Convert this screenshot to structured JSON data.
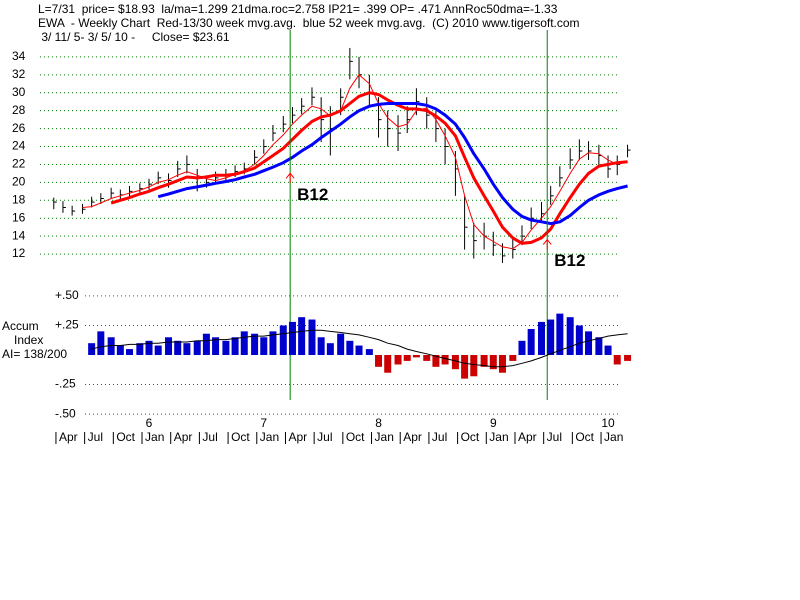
{
  "header": [
    "L=7/31  price= $18.93  la/ma=1.299 21dma.roc=2.758 IP21= .399 OP= .471 AnnRoc50dma=-1.33",
    "EWA  - Weekly Chart  Red-13/30 week mvg.avg.  blue 52 week mvg.avg.  (C) 2010 www.tigersoft.com",
    " 3/ 11/ 5- 3/ 5/ 10 -     Close= $23.61"
  ],
  "chart_data": [
    {
      "type": "ohlc",
      "x": [
        2005.17,
        2005.25,
        2005.33,
        2005.42,
        2005.5,
        2005.58,
        2005.67,
        2005.75,
        2005.83,
        2005.92,
        2006,
        2006.08,
        2006.17,
        2006.25,
        2006.33,
        2006.42,
        2006.5,
        2006.58,
        2006.67,
        2006.75,
        2006.83,
        2006.92,
        2007,
        2007.08,
        2007.17,
        2007.25,
        2007.33,
        2007.42,
        2007.5,
        2007.58,
        2007.67,
        2007.75,
        2007.83,
        2007.92,
        2008,
        2008.08,
        2008.17,
        2008.25,
        2008.33,
        2008.42,
        2008.5,
        2008.58,
        2008.67,
        2008.75,
        2008.83,
        2008.92,
        2009,
        2009.08,
        2009.17,
        2009.25,
        2009.33,
        2009.42,
        2009.5,
        2009.58,
        2009.67,
        2009.75,
        2009.83,
        2009.92,
        2010,
        2010.08,
        2010.17
      ],
      "high": [
        18.3,
        17.9,
        17.4,
        17.6,
        18.4,
        18.8,
        19.4,
        19.2,
        19.6,
        19.9,
        20.4,
        21.2,
        21.0,
        22.4,
        23.0,
        21.5,
        20.8,
        21.2,
        21.5,
        21.9,
        22.2,
        23.6,
        24.8,
        26.4,
        27.4,
        28.4,
        29.4,
        30.6,
        29.5,
        28.5,
        30.5,
        35.0,
        34.0,
        32.0,
        29.5,
        28.0,
        27.5,
        28.5,
        30.5,
        29.5,
        28.0,
        26.0,
        23.5,
        18.5,
        15.5,
        15.5,
        14.5,
        13.2,
        13.8,
        15.2,
        17.2,
        17.8,
        19.6,
        21.8,
        23.8,
        24.8,
        24.6,
        24.2,
        23.0,
        23.0,
        24.2
      ],
      "low": [
        17.0,
        16.6,
        16.3,
        16.5,
        17.2,
        17.6,
        18.2,
        18.0,
        18.4,
        18.7,
        19.2,
        19.8,
        19.4,
        20.6,
        21.0,
        19.0,
        19.4,
        19.8,
        20.2,
        20.6,
        20.9,
        22.0,
        23.2,
        24.6,
        25.6,
        26.6,
        27.6,
        28.6,
        24.5,
        23.0,
        27.5,
        31.5,
        30.5,
        28.5,
        25.0,
        24.0,
        23.5,
        25.5,
        27.5,
        26.0,
        24.5,
        22.0,
        18.5,
        12.5,
        11.5,
        12.5,
        11.8,
        11.0,
        11.5,
        13.0,
        14.8,
        15.5,
        17.5,
        19.5,
        21.5,
        22.5,
        22.5,
        21.8,
        20.5,
        20.8,
        22.8
      ],
      "close": [
        17.8,
        17.2,
        16.8,
        17.0,
        17.8,
        18.2,
        18.8,
        18.6,
        19.0,
        19.3,
        19.8,
        20.5,
        20.2,
        21.5,
        22.0,
        19.5,
        20.0,
        20.5,
        20.8,
        21.2,
        21.5,
        22.8,
        24.0,
        25.5,
        26.5,
        27.5,
        28.5,
        29.5,
        27.0,
        26.0,
        29.5,
        33.5,
        32.0,
        30.0,
        27.0,
        26.0,
        25.5,
        27.0,
        29.0,
        27.5,
        26.0,
        24.0,
        21.5,
        15.0,
        13.5,
        14.0,
        13.0,
        11.8,
        12.5,
        14.0,
        16.0,
        16.5,
        18.5,
        20.5,
        22.5,
        23.5,
        23.5,
        23.0,
        21.5,
        22.0,
        23.6
      ],
      "bar_color": "#000000",
      "moving_averages": [
        {
          "color": "#ff0000",
          "width": 1,
          "values": [
            null,
            null,
            null,
            17.2,
            17.3,
            17.7,
            18.2,
            18.5,
            18.8,
            19.1,
            19.5,
            20.0,
            20.3,
            20.8,
            21.2,
            20.8,
            20.4,
            20.2,
            20.5,
            20.9,
            21.3,
            22.0,
            23.0,
            24.2,
            25.3,
            26.5,
            27.5,
            28.5,
            28.2,
            27.4,
            28.0,
            30.5,
            32.0,
            31.0,
            28.8,
            27.2,
            26.2,
            26.5,
            28.0,
            28.3,
            27.0,
            25.2,
            22.8,
            18.5,
            15.3,
            14.0,
            13.4,
            12.8,
            12.6,
            13.3,
            14.7,
            16.0,
            17.3,
            19.0,
            21.0,
            22.6,
            23.3,
            23.2,
            22.5,
            22.0,
            22.3
          ]
        },
        {
          "color": "#ff0000",
          "width": 3,
          "values": [
            null,
            null,
            null,
            null,
            null,
            null,
            17.7,
            18.0,
            18.3,
            18.7,
            19.0,
            19.4,
            19.8,
            20.2,
            20.6,
            20.5,
            20.6,
            20.8,
            20.8,
            20.9,
            21.2,
            21.6,
            22.3,
            23.0,
            23.8,
            24.8,
            25.8,
            26.8,
            27.3,
            27.5,
            28.0,
            28.8,
            29.6,
            30.0,
            29.8,
            29.2,
            28.6,
            28.2,
            28.2,
            28.0,
            27.4,
            26.6,
            25.2,
            22.8,
            20.5,
            18.5,
            16.8,
            15.0,
            13.8,
            13.2,
            13.3,
            13.8,
            14.8,
            16.5,
            18.3,
            19.8,
            21.0,
            21.8,
            22.0,
            22.2,
            22.3
          ]
        },
        {
          "color": "#0000ff",
          "width": 3,
          "values": [
            null,
            null,
            null,
            null,
            null,
            null,
            null,
            null,
            null,
            null,
            null,
            18.4,
            18.7,
            19.0,
            19.3,
            19.5,
            19.7,
            19.9,
            20.1,
            20.3,
            20.6,
            20.9,
            21.3,
            21.7,
            22.2,
            22.8,
            23.5,
            24.2,
            25.0,
            25.7,
            26.5,
            27.3,
            28.0,
            28.5,
            28.7,
            28.8,
            28.8,
            28.8,
            28.8,
            28.6,
            28.2,
            27.5,
            26.5,
            25.0,
            23.2,
            21.5,
            19.8,
            18.3,
            17.0,
            16.2,
            15.8,
            15.6,
            15.4,
            15.6,
            16.3,
            17.2,
            18.0,
            18.6,
            19.0,
            19.3,
            19.6
          ]
        }
      ],
      "xlim": [
        2005.05,
        2010.2
      ],
      "ylim": [
        10,
        37
      ],
      "yticks": [
        12,
        14,
        16,
        18,
        20,
        22,
        24,
        26,
        28,
        30,
        32,
        34
      ],
      "grid": true,
      "grid_color": "#008000",
      "signals": [
        {
          "x": 2007.23,
          "label": "B12"
        },
        {
          "x": 2009.47,
          "label": "B12"
        }
      ],
      "signal_color": "#008000",
      "arrow_color": "#ff0000"
    },
    {
      "type": "bar",
      "labels": [
        "Accum",
        "Index",
        "AI= 138/200"
      ],
      "x": [
        2005.17,
        2005.25,
        2005.33,
        2005.42,
        2005.5,
        2005.58,
        2005.67,
        2005.75,
        2005.83,
        2005.92,
        2006,
        2006.08,
        2006.17,
        2006.25,
        2006.33,
        2006.42,
        2006.5,
        2006.58,
        2006.67,
        2006.75,
        2006.83,
        2006.92,
        2007,
        2007.08,
        2007.17,
        2007.25,
        2007.33,
        2007.42,
        2007.5,
        2007.58,
        2007.67,
        2007.75,
        2007.83,
        2007.92,
        2008,
        2008.08,
        2008.17,
        2008.25,
        2008.33,
        2008.42,
        2008.5,
        2008.58,
        2008.67,
        2008.75,
        2008.83,
        2008.92,
        2009,
        2009.08,
        2009.17,
        2009.25,
        2009.33,
        2009.42,
        2009.5,
        2009.58,
        2009.67,
        2009.75,
        2009.83,
        2009.92,
        2010,
        2010.08,
        2010.17
      ],
      "values": [
        null,
        null,
        null,
        null,
        0.1,
        0.2,
        0.15,
        0.08,
        0.05,
        0.1,
        0.12,
        0.08,
        0.15,
        0.12,
        0.1,
        0.12,
        0.18,
        0.15,
        0.12,
        0.15,
        0.2,
        0.18,
        0.15,
        0.2,
        0.25,
        0.28,
        0.32,
        0.3,
        0.15,
        0.1,
        0.18,
        0.12,
        0.08,
        0.05,
        -0.1,
        -0.15,
        -0.08,
        -0.05,
        -0.02,
        -0.05,
        -0.1,
        -0.08,
        -0.12,
        -0.2,
        -0.18,
        -0.1,
        -0.12,
        -0.15,
        -0.05,
        0.12,
        0.22,
        0.28,
        0.3,
        0.35,
        0.32,
        0.25,
        0.2,
        0.15,
        0.08,
        -0.08,
        -0.05
      ],
      "colors": {
        "positive": "#0000cc",
        "negative": "#cc0000"
      },
      "line": {
        "color": "#000000",
        "values": [
          null,
          null,
          null,
          null,
          0.05,
          0.07,
          0.08,
          0.08,
          0.09,
          0.09,
          0.1,
          0.1,
          0.11,
          0.11,
          0.11,
          0.12,
          0.12,
          0.13,
          0.13,
          0.14,
          0.15,
          0.16,
          0.16,
          0.17,
          0.18,
          0.19,
          0.2,
          0.21,
          0.21,
          0.2,
          0.19,
          0.18,
          0.17,
          0.15,
          0.13,
          0.1,
          0.08,
          0.05,
          0.03,
          0.01,
          -0.01,
          -0.03,
          -0.05,
          -0.07,
          -0.08,
          -0.09,
          -0.1,
          -0.1,
          -0.09,
          -0.07,
          -0.05,
          -0.02,
          0.01,
          0.04,
          0.07,
          0.1,
          0.12,
          0.14,
          0.16,
          0.17,
          0.18
        ]
      },
      "xlim": [
        2005.05,
        2010.2
      ],
      "ylim": [
        -0.55,
        0.55
      ],
      "yticks": [
        {
          "value": 0.5,
          "label": "+.50"
        },
        {
          "value": 0.25,
          "label": "+.25"
        },
        {
          "value": -0.25,
          "label": "-.25"
        },
        {
          "value": -0.5,
          "label": "-.50"
        }
      ],
      "grid": true,
      "grid_color": "#008000",
      "year_labels": [
        {
          "value": 2006,
          "label": "6"
        },
        {
          "value": 2007,
          "label": "7"
        },
        {
          "value": 2008,
          "label": "8"
        },
        {
          "value": 2009,
          "label": "9"
        },
        {
          "value": 2010,
          "label": "10"
        }
      ],
      "xticks": [
        {
          "value": 2005.25,
          "label": "Apr"
        },
        {
          "value": 2005.5,
          "label": "Jul"
        },
        {
          "value": 2005.75,
          "label": "Oct"
        },
        {
          "value": 2006,
          "label": "Jan"
        },
        {
          "value": 2006.25,
          "label": "Apr"
        },
        {
          "value": 2006.5,
          "label": "Jul"
        },
        {
          "value": 2006.75,
          "label": "Oct"
        },
        {
          "value": 2007,
          "label": "Jan"
        },
        {
          "value": 2007.25,
          "label": "Apr"
        },
        {
          "value": 2007.5,
          "label": "Jul"
        },
        {
          "value": 2007.75,
          "label": "Oct"
        },
        {
          "value": 2008,
          "label": "Jan"
        },
        {
          "value": 2008.25,
          "label": "Apr"
        },
        {
          "value": 2008.5,
          "label": "Jul"
        },
        {
          "value": 2008.75,
          "label": "Oct"
        },
        {
          "value": 2009,
          "label": "Jan"
        },
        {
          "value": 2009.25,
          "label": "Apr"
        },
        {
          "value": 2009.5,
          "label": "Jul"
        },
        {
          "value": 2009.75,
          "label": "Oct"
        },
        {
          "value": 2010,
          "label": "Jan"
        }
      ]
    }
  ]
}
